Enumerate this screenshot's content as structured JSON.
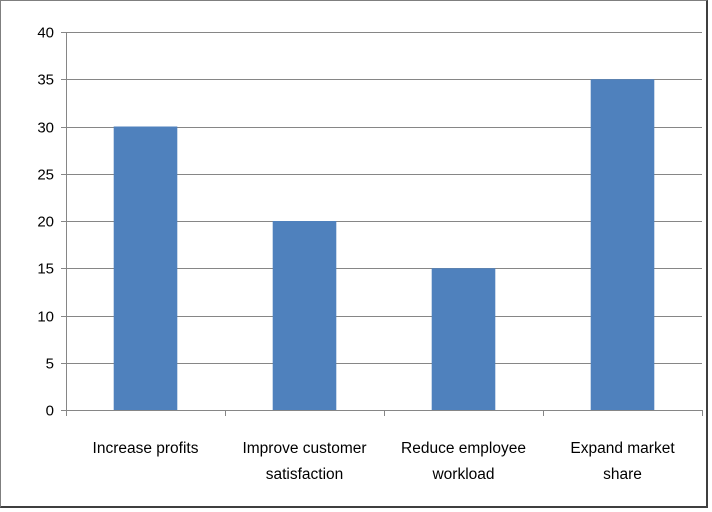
{
  "chart_data": {
    "type": "bar",
    "categories": [
      [
        "Increase profits"
      ],
      [
        "Improve customer",
        "satisfaction"
      ],
      [
        "Reduce employee",
        "workload"
      ],
      [
        "Expand market",
        "share"
      ]
    ],
    "values": [
      30,
      20,
      15,
      35
    ],
    "ylim": [
      0,
      40
    ],
    "yticks": [
      0,
      5,
      10,
      15,
      20,
      25,
      30,
      35,
      40
    ],
    "grid": true,
    "legend": "none",
    "colors": {
      "bar": "#4f81bd",
      "grid": "#868686",
      "axis": "#868686",
      "frame": "#3f3f3f"
    }
  }
}
